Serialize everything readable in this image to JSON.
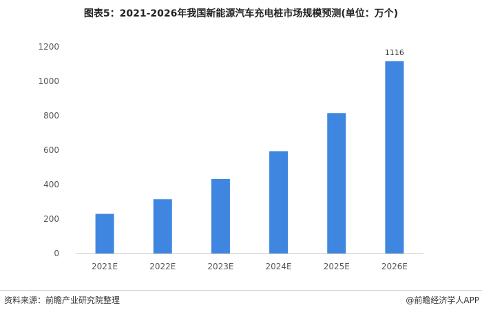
{
  "title": "图表5：2021-2026年我国新能源汽车充电桩市场规模预测(单位：万个)",
  "footer": {
    "source": "资料来源：前瞻产业研究院整理",
    "brand": "@前瞻经济学人APP"
  },
  "colors": {
    "bar": "#3f86e0",
    "axis": "#cccccc"
  },
  "chart_data": {
    "type": "bar",
    "title": "图表5：2021-2026年我国新能源汽车充电桩市场规模预测(单位：万个)",
    "xlabel": "",
    "ylabel": "",
    "categories": [
      "2021E",
      "2022E",
      "2023E",
      "2024E",
      "2025E",
      "2026E"
    ],
    "values": [
      230,
      315,
      432,
      594,
      815,
      1116
    ],
    "data_labels": [
      "",
      "",
      "",
      "",
      "",
      "1116"
    ],
    "ylim": [
      0,
      1200
    ],
    "yticks": [
      0,
      200,
      400,
      600,
      800,
      1000,
      1200
    ],
    "grid": false,
    "legend": "none"
  }
}
